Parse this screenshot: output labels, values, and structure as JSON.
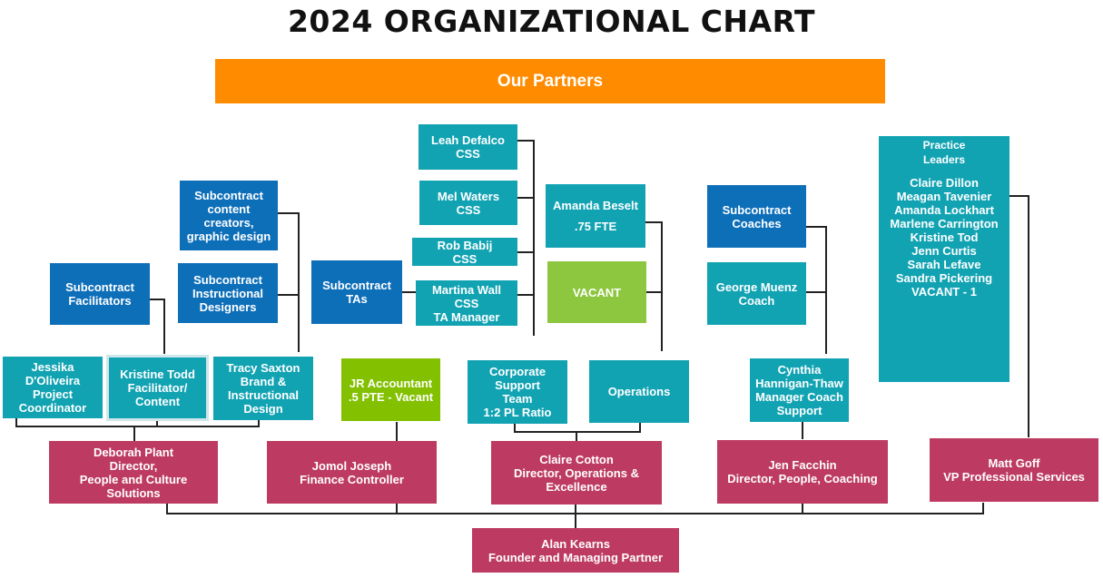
{
  "title": "2024 ORGANIZATIONAL CHART",
  "banner": {
    "label": "Our Partners",
    "color": "#FF8C00"
  },
  "colors": {
    "teal": "#12A3B3",
    "blue": "#0E6FB9",
    "green": "#8DC63F",
    "crimson": "#BD3B63",
    "connector": "#222222"
  },
  "boxes": {
    "sub_content": [
      "Subcontract",
      "content",
      "creators,",
      "graphic design"
    ],
    "sub_instr": [
      "Subcontract",
      "Instructional",
      "Designers"
    ],
    "sub_facil": [
      "Subcontract",
      "Facilitators"
    ],
    "jessika": [
      "Jessika",
      "D'Oliveira",
      "Project",
      "Coordinator"
    ],
    "kristine": [
      "Kristine Todd",
      "Facilitator/",
      "Content"
    ],
    "tracy": [
      "Tracy Saxton",
      "Brand &",
      "Instructional",
      "Design"
    ],
    "deborah": [
      "Deborah Plant",
      "Director,",
      "People and Culture",
      "Solutions"
    ],
    "jr_acct": [
      "JR Accountant",
      ".5 PTE - Vacant"
    ],
    "jomol": [
      "Jomol Joseph",
      "Finance Controller"
    ],
    "sub_tas": [
      "Subcontract",
      "TAs"
    ],
    "leah": [
      "Leah Defalco",
      "CSS"
    ],
    "mel": [
      "Mel Waters",
      "CSS"
    ],
    "rob": [
      "Rob Babij",
      "CSS"
    ],
    "martina": [
      "Martina Wall",
      "CSS",
      "TA Manager"
    ],
    "amanda_b": [
      "Amanda Beselt",
      "",
      ".75 FTE"
    ],
    "vacant": [
      "VACANT"
    ],
    "corp_support": [
      "Corporate",
      "Support",
      "Team",
      "1:2 PL Ratio"
    ],
    "operations": [
      "Operations"
    ],
    "claire_c": [
      "Claire Cotton",
      "Director, Operations &",
      "Excellence"
    ],
    "sub_coaches": [
      "Subcontract",
      "Coaches"
    ],
    "george": [
      "George  Muenz",
      "Coach"
    ],
    "cynthia": [
      "Cynthia",
      "Hannigan-Thaw",
      "Manager Coach",
      "Support"
    ],
    "jen": [
      "Jen Facchin",
      "Director, People, Coaching"
    ],
    "practice_title": [
      "Practice",
      "Leaders"
    ],
    "practice_members": [
      "Claire Dillon",
      "Meagan Tavenier",
      "Amanda Lockhart",
      "Marlene Carrington",
      "Kristine Tod",
      "Jenn Curtis",
      "Sarah Lefave",
      "Sandra Pickering",
      "VACANT - 1"
    ],
    "matt": [
      "Matt Goff",
      "VP Professional Services"
    ],
    "alan": [
      "Alan Kearns",
      "Founder and Managing Partner"
    ]
  }
}
